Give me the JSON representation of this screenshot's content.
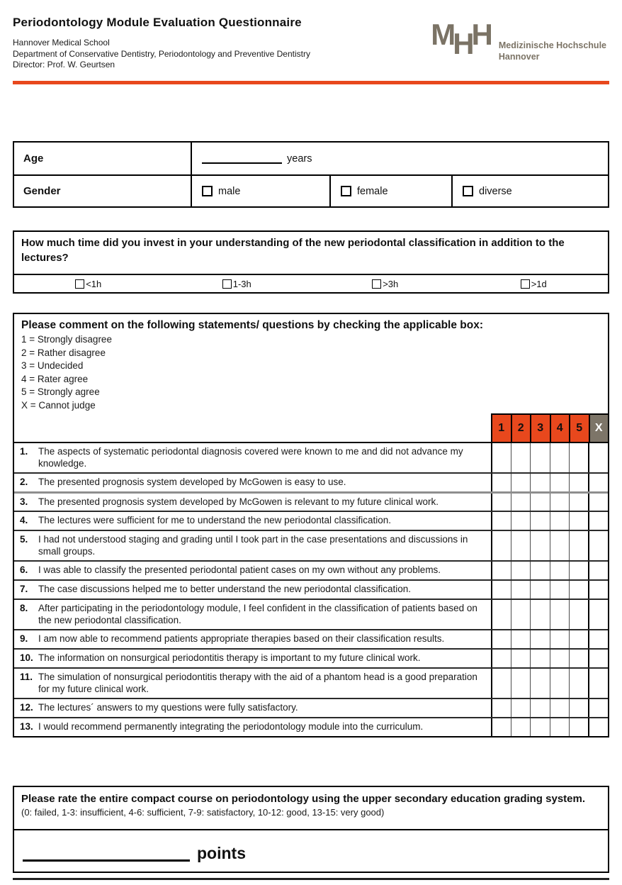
{
  "theme": {
    "accent": "#e8481d",
    "cannot_judge_bg": "#7d7568",
    "logo_color": "#7b7365"
  },
  "header": {
    "title": "Periodontology Module Evaluation Questionnaire",
    "org_lines": [
      "Hannover Medical School",
      "Department of Conservative Dentistry, Periodontology and Preventive Dentistry",
      "Director: Prof. W. Geurtsen"
    ],
    "logo": {
      "letters": [
        "M",
        "H",
        "H"
      ],
      "name_line1": "Medizinische Hochschule",
      "name_line2": "Hannover"
    }
  },
  "demographics": {
    "age_label": "Age",
    "age_unit": "years",
    "gender_label": "Gender",
    "gender_options": [
      "male",
      "female",
      "diverse"
    ]
  },
  "time_question": {
    "question": "How much time did you invest in your understanding of the new periodontal classification in addition to the lectures?",
    "options": [
      "<1h",
      "1-3h",
      ">3h",
      ">1d"
    ]
  },
  "survey": {
    "instruction": "Please comment on the following statements/ questions by checking the applicable box:",
    "legend": [
      "1 = Strongly disagree",
      "2 = Rather disagree",
      "3 = Undecided",
      "4 = Rater agree",
      "5 = Strongly agree",
      "X = Cannot judge"
    ],
    "scale_headers": [
      "1",
      "2",
      "3",
      "4",
      "5",
      "X"
    ],
    "statements": [
      {
        "num": "1.",
        "text": "The aspects of systematic periodontal diagnosis covered were known to me and did not advance my knowledge."
      },
      {
        "num": "2.",
        "text": "The presented prognosis system developed by McGowen is easy to use."
      },
      {
        "num": "3.",
        "text": "The presented prognosis system developed by McGowen is relevant to my future clinical work."
      },
      {
        "num": "4.",
        "text": "The lectures were sufficient for me to understand the new periodontal classification."
      },
      {
        "num": "5.",
        "text": "I had not understood staging and grading until I took part in the case presentations and discussions in small groups."
      },
      {
        "num": "6.",
        "text": "I was able to classify the presented periodontal patient cases on my own without any problems."
      },
      {
        "num": "7.",
        "text": "The case discussions helped me to better understand the new periodontal classification."
      },
      {
        "num": "8.",
        "text": "After participating in the periodontology module, I feel confident in the classification of patients based on the new periodontal classification."
      },
      {
        "num": "9.",
        "text": "I am now able to recommend patients appropriate therapies based on their classification results."
      },
      {
        "num": "10.",
        "text": "The information on nonsurgical periodontitis therapy is important to my future clinical work."
      },
      {
        "num": "11.",
        "text": "The simulation of nonsurgical periodontitis therapy with the aid of a phantom head is a good preparation for my future clinical work."
      },
      {
        "num": "12.",
        "text": "The lectures´ answers to my questions were fully satisfactory."
      },
      {
        "num": "13.",
        "text": "I would recommend permanently integrating the periodontology module into the curriculum."
      }
    ]
  },
  "grading": {
    "prompt": "Please rate the entire compact course on periodontology using the upper secondary education grading system.",
    "scale_note": "(0: failed, 1-3: insufficient, 4-6: sufficient, 7-9: satisfactory, 10-12: good, 13-15: very good)",
    "unit": "points"
  }
}
